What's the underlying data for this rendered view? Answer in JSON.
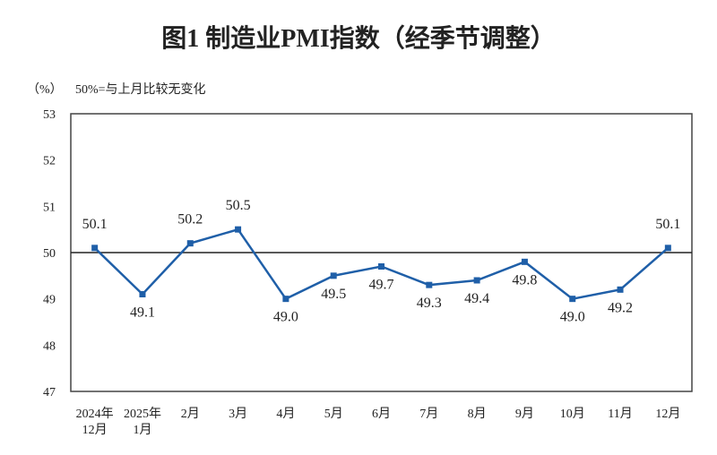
{
  "chart_data": {
    "type": "line",
    "title": "图1  制造业PMI指数（经季节调整）",
    "ylabel": "（%）",
    "annotation": "50%=与上月比较无变化",
    "categories": [
      [
        "2024年",
        "12月"
      ],
      [
        "2025年",
        "1月"
      ],
      [
        "2月"
      ],
      [
        "3月"
      ],
      [
        "4月"
      ],
      [
        "5月"
      ],
      [
        "6月"
      ],
      [
        "7月"
      ],
      [
        "8月"
      ],
      [
        "9月"
      ],
      [
        "10月"
      ],
      [
        "11月"
      ],
      [
        "12月"
      ]
    ],
    "series": [
      {
        "values": [
          50.1,
          49.1,
          50.2,
          50.5,
          49.0,
          49.5,
          49.7,
          49.3,
          49.4,
          49.8,
          49.0,
          49.2,
          50.1
        ]
      }
    ],
    "data_labels": [
      "50.1",
      "49.1",
      "50.2",
      "50.5",
      "49.0",
      "49.5",
      "49.7",
      "49.3",
      "49.4",
      "49.8",
      "49.0",
      "49.2",
      "50.1"
    ],
    "ylim": [
      47,
      53
    ],
    "yticks": [
      "47",
      "48",
      "49",
      "50",
      "51",
      "52",
      "53"
    ],
    "reference_line": 50,
    "grid": false,
    "colors": {
      "line": "#1f5fa8",
      "marker": "#1f5fa8",
      "axis": "#333333"
    }
  }
}
